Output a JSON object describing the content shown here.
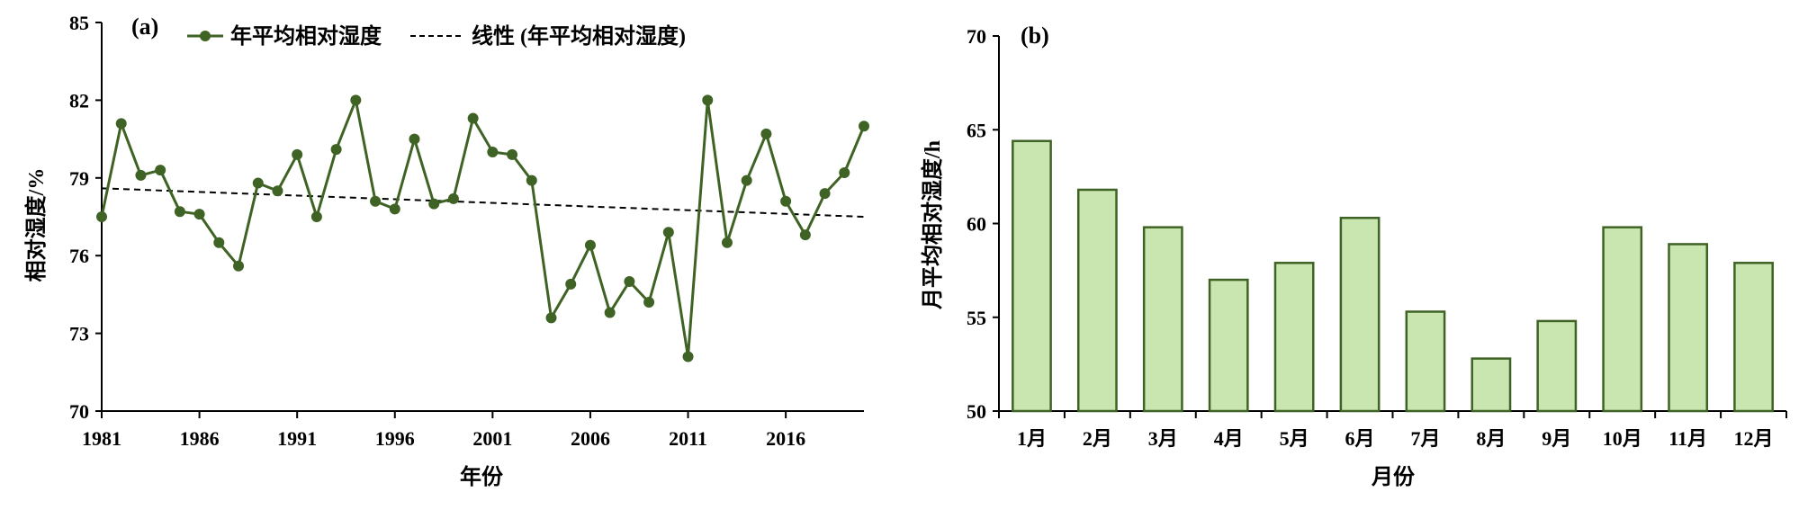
{
  "chart_data": [
    {
      "type": "line",
      "panel_label": "(a)",
      "xlabel": "年份",
      "ylabel": "相对湿度/%",
      "xlim": [
        1981,
        2020
      ],
      "ylim": [
        70,
        85
      ],
      "x_ticks": [
        1981,
        1986,
        1991,
        1996,
        2001,
        2006,
        2011,
        2016
      ],
      "y_ticks": [
        70,
        73,
        76,
        79,
        82,
        85
      ],
      "legend_position": "top-center",
      "series": [
        {
          "name": "年平均相对湿度",
          "color": "#3f6324",
          "x": [
            1981,
            1982,
            1983,
            1984,
            1985,
            1986,
            1987,
            1988,
            1989,
            1990,
            1991,
            1992,
            1993,
            1994,
            1995,
            1996,
            1997,
            1998,
            1999,
            2000,
            2001,
            2002,
            2003,
            2004,
            2005,
            2006,
            2007,
            2008,
            2009,
            2010,
            2011,
            2012,
            2013,
            2014,
            2015,
            2016,
            2017,
            2018,
            2019,
            2020
          ],
          "values": [
            77.5,
            81.1,
            79.1,
            79.3,
            77.7,
            77.6,
            76.5,
            75.6,
            78.8,
            78.5,
            79.9,
            77.5,
            80.1,
            82.0,
            78.1,
            77.8,
            80.5,
            78.0,
            78.2,
            81.3,
            80.0,
            79.9,
            78.9,
            73.6,
            74.9,
            76.4,
            73.8,
            75.0,
            74.2,
            76.9,
            72.1,
            82.0,
            76.5,
            78.9,
            80.7,
            78.1,
            76.8,
            78.4,
            79.2,
            81.0
          ]
        },
        {
          "name": "线性 (年平均相对湿度)",
          "color": "#000000",
          "dashed": true,
          "x": [
            1981,
            2020
          ],
          "values": [
            78.6,
            77.5
          ]
        }
      ]
    },
    {
      "type": "bar",
      "panel_label": "(b)",
      "xlabel": "月份",
      "ylabel": "月平均相对湿度/h",
      "ylim": [
        50,
        70
      ],
      "y_ticks": [
        50,
        55,
        60,
        65,
        70
      ],
      "bar_fill": "#c9e6b0",
      "bar_stroke": "#3f6324",
      "categories": [
        "1月",
        "2月",
        "3月",
        "4月",
        "5月",
        "6月",
        "7月",
        "8月",
        "9月",
        "10月",
        "11月",
        "12月"
      ],
      "values": [
        64.4,
        61.8,
        59.8,
        57.0,
        57.9,
        60.3,
        55.3,
        52.8,
        54.8,
        59.8,
        58.9,
        57.9
      ]
    }
  ]
}
